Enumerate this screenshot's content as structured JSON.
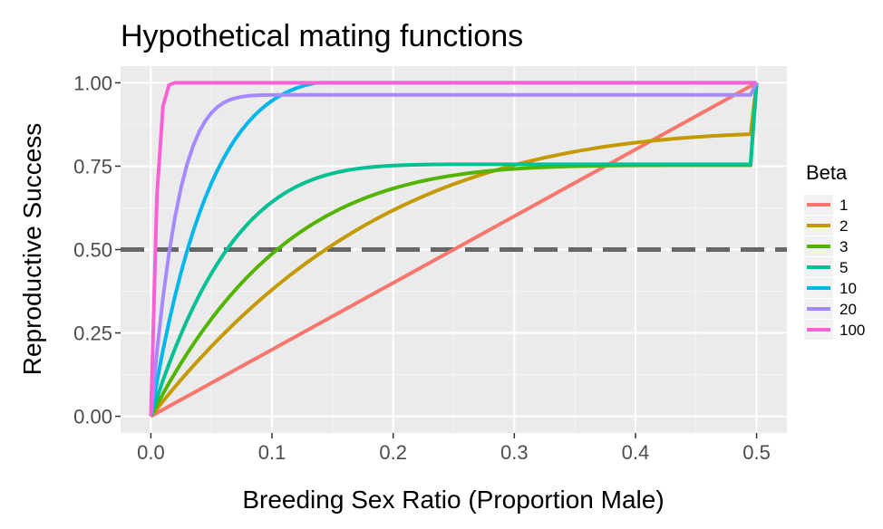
{
  "chart_data": {
    "type": "line",
    "title": "Hypothetical mating functions",
    "xlabel": "Breeding Sex Ratio (Proportion Male)",
    "ylabel": "Reproductive Success",
    "xlim": [
      -0.025,
      0.525
    ],
    "ylim": [
      -0.05,
      1.05
    ],
    "x_ticks": [
      0.0,
      0.1,
      0.2,
      0.3,
      0.4,
      0.5
    ],
    "x_tick_labels": [
      "0.0",
      "0.1",
      "0.2",
      "0.3",
      "0.4",
      "0.5"
    ],
    "y_ticks": [
      0.0,
      0.25,
      0.5,
      0.75,
      1.0
    ],
    "y_tick_labels": [
      "0.00",
      "0.25",
      "0.50",
      "0.75",
      "1.00"
    ],
    "grid": true,
    "legend": {
      "title": "Beta",
      "position": "right"
    },
    "x": [
      0.0,
      0.005,
      0.01,
      0.015,
      0.02,
      0.025,
      0.03,
      0.035,
      0.04,
      0.045,
      0.05,
      0.055,
      0.06,
      0.065,
      0.07,
      0.075,
      0.08,
      0.085,
      0.09,
      0.095,
      0.1,
      0.105,
      0.11,
      0.115,
      0.12,
      0.125,
      0.13,
      0.135,
      0.14,
      0.145,
      0.15,
      0.155,
      0.16,
      0.165,
      0.17,
      0.175,
      0.18,
      0.185,
      0.19,
      0.195,
      0.2,
      0.205,
      0.21,
      0.215,
      0.22,
      0.225,
      0.23,
      0.235,
      0.24,
      0.245,
      0.25,
      0.255,
      0.26,
      0.265,
      0.27,
      0.275,
      0.28,
      0.285,
      0.29,
      0.295,
      0.3,
      0.305,
      0.31,
      0.315,
      0.32,
      0.325,
      0.33,
      0.335,
      0.34,
      0.345,
      0.35,
      0.355,
      0.36,
      0.365,
      0.37,
      0.375,
      0.38,
      0.385,
      0.39,
      0.395,
      0.4,
      0.405,
      0.41,
      0.415,
      0.42,
      0.425,
      0.43,
      0.435,
      0.44,
      0.445,
      0.45,
      0.455,
      0.46,
      0.465,
      0.47,
      0.475,
      0.48,
      0.485,
      0.49,
      0.495,
      0.5
    ],
    "series": [
      {
        "name": "1",
        "color": "#F8766D",
        "values": [
          0.0,
          0.01,
          0.02,
          0.03,
          0.04,
          0.05,
          0.06,
          0.07,
          0.08,
          0.09,
          0.1,
          0.11,
          0.12,
          0.13,
          0.14,
          0.15,
          0.16,
          0.17,
          0.18,
          0.19,
          0.2,
          0.21,
          0.22,
          0.23,
          0.24,
          0.25,
          0.26,
          0.27,
          0.28,
          0.29,
          0.3,
          0.31,
          0.32,
          0.33,
          0.34,
          0.35,
          0.36,
          0.37,
          0.38,
          0.39,
          0.4,
          0.41,
          0.42,
          0.43,
          0.44,
          0.45,
          0.46,
          0.47,
          0.48,
          0.49,
          0.5,
          0.51,
          0.52,
          0.53,
          0.54,
          0.55,
          0.56,
          0.57,
          0.58,
          0.59,
          0.6,
          0.61,
          0.62,
          0.63,
          0.64,
          0.65,
          0.66,
          0.67,
          0.68,
          0.69,
          0.7,
          0.71,
          0.72,
          0.73,
          0.74,
          0.75,
          0.76,
          0.77,
          0.78,
          0.79,
          0.8,
          0.81,
          0.82,
          0.83,
          0.84,
          0.85,
          0.86,
          0.87,
          0.88,
          0.89,
          0.9,
          0.91,
          0.92,
          0.93,
          0.94,
          0.95,
          0.96,
          0.97,
          0.98,
          0.99,
          1.0
        ]
      },
      {
        "name": "2",
        "color": "#C49A00",
        "values": [
          0.0,
          0.0228,
          0.0452,
          0.0672,
          0.0888,
          0.11,
          0.1307,
          0.1511,
          0.171,
          0.1905,
          0.2096,
          0.2283,
          0.2466,
          0.2645,
          0.2821,
          0.2992,
          0.316,
          0.3324,
          0.3485,
          0.3641,
          0.3795,
          0.3944,
          0.409,
          0.4233,
          0.4372,
          0.4508,
          0.4641,
          0.477,
          0.4896,
          0.5019,
          0.5139,
          0.5256,
          0.537,
          0.5481,
          0.5589,
          0.5694,
          0.5796,
          0.5896,
          0.5993,
          0.6087,
          0.6179,
          0.6268,
          0.6354,
          0.6438,
          0.652,
          0.6599,
          0.6676,
          0.6751,
          0.6823,
          0.6893,
          0.6961,
          0.7027,
          0.7091,
          0.7153,
          0.7213,
          0.7271,
          0.7327,
          0.7382,
          0.7434,
          0.7485,
          0.7534,
          0.7581,
          0.7627,
          0.7671,
          0.7713,
          0.7754,
          0.7793,
          0.7831,
          0.7868,
          0.7903,
          0.7936,
          0.7969,
          0.8,
          0.803,
          0.8058,
          0.8086,
          0.8112,
          0.8137,
          0.8161,
          0.8184,
          0.8206,
          0.8227,
          0.8247,
          0.8266,
          0.8284,
          0.8301,
          0.8317,
          0.8333,
          0.8347,
          0.8361,
          0.8374,
          0.8386,
          0.8398,
          0.8409,
          0.8419,
          0.8428,
          0.8437,
          0.8445,
          0.8452,
          0.8459,
          1.0
        ]
      },
      {
        "name": "3",
        "color": "#53B400",
        "values": [
          0.0,
          0.0344,
          0.0676,
          0.0996,
          0.1304,
          0.16,
          0.1886,
          0.216,
          0.2424,
          0.2678,
          0.2922,
          0.3156,
          0.3381,
          0.3596,
          0.3803,
          0.4001,
          0.4191,
          0.4372,
          0.4546,
          0.4712,
          0.4871,
          0.5023,
          0.5168,
          0.5306,
          0.5438,
          0.5563,
          0.5683,
          0.5796,
          0.5904,
          0.6007,
          0.6104,
          0.6196,
          0.6284,
          0.6367,
          0.6445,
          0.6519,
          0.6589,
          0.6655,
          0.6717,
          0.6776,
          0.6831,
          0.6883,
          0.6932,
          0.6978,
          0.7021,
          0.7061,
          0.7099,
          0.7134,
          0.7167,
          0.7198,
          0.7226,
          0.7253,
          0.7278,
          0.7301,
          0.7322,
          0.7342,
          0.736,
          0.7377,
          0.7392,
          0.7406,
          0.7419,
          0.7431,
          0.7442,
          0.7452,
          0.7461,
          0.7469,
          0.7476,
          0.7483,
          0.7489,
          0.7494,
          0.7499,
          0.7503,
          0.7507,
          0.751,
          0.7513,
          0.7516,
          0.7518,
          0.752,
          0.7522,
          0.7523,
          0.7524,
          0.7525,
          0.7526,
          0.7527,
          0.7527,
          0.7528,
          0.7528,
          0.7528,
          0.7528,
          0.7528,
          0.7528,
          0.7528,
          0.7528,
          0.7528,
          0.7528,
          0.7528,
          0.7528,
          0.7528,
          0.7528,
          0.7528,
          1.0
        ]
      },
      {
        "name": "5",
        "color": "#00C094",
        "values": [
          0.0,
          0.0554,
          0.1078,
          0.1571,
          0.2036,
          0.2474,
          0.2885,
          0.3271,
          0.3633,
          0.3971,
          0.4287,
          0.4582,
          0.4857,
          0.5112,
          0.5349,
          0.5568,
          0.577,
          0.5957,
          0.6128,
          0.6285,
          0.6429,
          0.656,
          0.6679,
          0.6787,
          0.6884,
          0.6971,
          0.7049,
          0.7119,
          0.7181,
          0.7236,
          0.7284,
          0.7326,
          0.7363,
          0.7395,
          0.7422,
          0.7446,
          0.7466,
          0.7483,
          0.7497,
          0.7509,
          0.7519,
          0.7527,
          0.7534,
          0.7539,
          0.7543,
          0.7547,
          0.755,
          0.7552,
          0.7554,
          0.7555,
          0.7556,
          0.7557,
          0.7557,
          0.7558,
          0.7558,
          0.7558,
          0.7558,
          0.7558,
          0.7558,
          0.7558,
          0.7558,
          0.7558,
          0.7558,
          0.7558,
          0.7558,
          0.7558,
          0.7558,
          0.7558,
          0.7558,
          0.7558,
          0.7558,
          0.7558,
          0.7558,
          0.7558,
          0.7558,
          0.7558,
          0.7558,
          0.7558,
          0.7558,
          0.7558,
          0.7558,
          0.7558,
          0.7558,
          0.7558,
          0.7558,
          0.7558,
          0.7558,
          0.7558,
          0.7558,
          0.7558,
          0.7558,
          0.7558,
          0.7558,
          0.7558,
          0.7558,
          0.7558,
          0.7558,
          0.7558,
          0.7558,
          0.7558,
          1.0
        ]
      },
      {
        "name": "10",
        "color": "#00B6EB",
        "values": [
          0.0,
          0.1034,
          0.1977,
          0.2836,
          0.3617,
          0.4327,
          0.4971,
          0.5555,
          0.6084,
          0.6562,
          0.6994,
          0.7383,
          0.7733,
          0.8047,
          0.8328,
          0.8579,
          0.8802,
          0.9,
          0.9175,
          0.9329,
          0.9463,
          0.9579,
          0.968,
          0.9766,
          0.9839,
          0.99,
          0.995,
          0.9991,
          1.0,
          1.0,
          1.0,
          1.0,
          1.0,
          1.0,
          1.0,
          1.0,
          1.0,
          1.0,
          1.0,
          1.0,
          1.0,
          1.0,
          1.0,
          1.0,
          1.0,
          1.0,
          1.0,
          1.0,
          1.0,
          1.0,
          1.0,
          1.0,
          1.0,
          1.0,
          1.0,
          1.0,
          1.0,
          1.0,
          1.0,
          1.0,
          1.0,
          1.0,
          1.0,
          1.0,
          1.0,
          1.0,
          1.0,
          1.0,
          1.0,
          1.0,
          1.0,
          1.0,
          1.0,
          1.0,
          1.0,
          1.0,
          1.0,
          1.0,
          1.0,
          1.0,
          1.0,
          1.0,
          1.0,
          1.0,
          1.0,
          1.0,
          1.0,
          1.0,
          1.0,
          1.0,
          1.0,
          1.0,
          1.0,
          1.0,
          1.0,
          1.0,
          1.0,
          1.0,
          1.0,
          1.0,
          1.0
        ]
      },
      {
        "name": "20",
        "color": "#A58AFF",
        "values": [
          0.0,
          0.1937,
          0.3557,
          0.4896,
          0.599,
          0.6871,
          0.7571,
          0.8119,
          0.8541,
          0.8862,
          0.9101,
          0.9276,
          0.9401,
          0.9487,
          0.9545,
          0.9582,
          0.9606,
          0.962,
          0.9628,
          0.9633,
          0.9635,
          0.9636,
          0.9637,
          0.9637,
          0.9637,
          0.9637,
          0.9637,
          0.9637,
          0.9637,
          0.9637,
          0.9637,
          0.9637,
          0.9637,
          0.9637,
          0.9637,
          0.9637,
          0.9637,
          0.9637,
          0.9637,
          0.9637,
          0.9637,
          0.9637,
          0.9637,
          0.9637,
          0.9637,
          0.9637,
          0.9637,
          0.9637,
          0.9637,
          0.9637,
          0.9637,
          0.9637,
          0.9637,
          0.9637,
          0.9637,
          0.9637,
          0.9637,
          0.9637,
          0.9637,
          0.9637,
          0.9637,
          0.9637,
          0.9637,
          0.9637,
          0.9637,
          0.9637,
          0.9637,
          0.9637,
          0.9637,
          0.9637,
          0.9637,
          0.9637,
          0.9637,
          0.9637,
          0.9637,
          0.9637,
          0.9637,
          0.9637,
          0.9637,
          0.9637,
          0.9637,
          0.9637,
          0.9637,
          0.9637,
          0.9637,
          0.9637,
          0.9637,
          0.9637,
          0.9637,
          0.9637,
          0.9637,
          0.9637,
          0.9637,
          0.9637,
          0.9637,
          0.9637,
          0.9637,
          0.9637,
          0.9637,
          0.9637,
          1.0
        ]
      },
      {
        "name": "100",
        "color": "#FB61D7",
        "values": [
          0.0,
          0.6604,
          0.9298,
          0.9936,
          1.0,
          1.0,
          1.0,
          1.0,
          1.0,
          1.0,
          1.0,
          1.0,
          1.0,
          1.0,
          1.0,
          1.0,
          1.0,
          1.0,
          1.0,
          1.0,
          1.0,
          1.0,
          1.0,
          1.0,
          1.0,
          1.0,
          1.0,
          1.0,
          1.0,
          1.0,
          1.0,
          1.0,
          1.0,
          1.0,
          1.0,
          1.0,
          1.0,
          1.0,
          1.0,
          1.0,
          1.0,
          1.0,
          1.0,
          1.0,
          1.0,
          1.0,
          1.0,
          1.0,
          1.0,
          1.0,
          1.0,
          1.0,
          1.0,
          1.0,
          1.0,
          1.0,
          1.0,
          1.0,
          1.0,
          1.0,
          1.0,
          1.0,
          1.0,
          1.0,
          1.0,
          1.0,
          1.0,
          1.0,
          1.0,
          1.0,
          1.0,
          1.0,
          1.0,
          1.0,
          1.0,
          1.0,
          1.0,
          1.0,
          1.0,
          1.0,
          1.0,
          1.0,
          1.0,
          1.0,
          1.0,
          1.0,
          1.0,
          1.0,
          1.0,
          1.0,
          1.0,
          1.0,
          1.0,
          1.0,
          1.0,
          1.0,
          1.0,
          1.0,
          1.0,
          1.0,
          1.0
        ]
      }
    ],
    "hline": {
      "y": 0.5,
      "style": "dashed",
      "color": "#666666"
    },
    "colors": {
      "panel_background": "#EBEBEB",
      "grid_major": "#FFFFFF",
      "grid_minor": "#F5F5F5"
    }
  }
}
